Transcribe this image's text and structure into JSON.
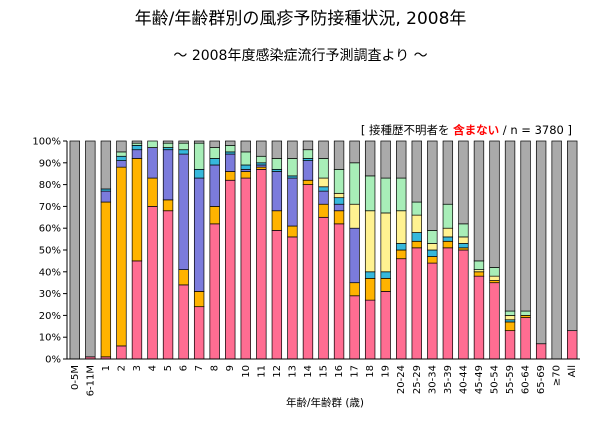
{
  "chart_data": {
    "type": "bar",
    "stacked": true,
    "title": "年齢/年齢群別の風疹予防接種状況, 2008年",
    "subtitle": "～ 2008年度感染症流行予測調査より ～",
    "annotation": {
      "prefix": "[ 接種歴不明者を ",
      "emphasis": "含まない",
      "suffix": " / n = 3780 ]",
      "emphasis_color": "#ff0000"
    },
    "xlabel": "年齢/年齢群 (歳)",
    "ylabel": "",
    "ylim": [
      0,
      100
    ],
    "yticks": [
      "0%",
      "10%",
      "20%",
      "30%",
      "40%",
      "50%",
      "60%",
      "70%",
      "80%",
      "90%",
      "100%"
    ],
    "grid": false,
    "legend": "none",
    "categories": [
      "0-5M",
      "6-11M",
      "1",
      "2",
      "3",
      "4",
      "5",
      "6",
      "7",
      "8",
      "9",
      "10",
      "11",
      "12",
      "13",
      "14",
      "15",
      "16",
      "17",
      "18",
      "19",
      "20-24",
      "25-29",
      "30-34",
      "35-39",
      "40-44",
      "45-49",
      "50-54",
      "55-59",
      "60-64",
      "65-69",
      "≥70",
      "All"
    ],
    "series_colors": [
      "#ff6d92",
      "#ffb300",
      "#7b7bdc",
      "#36b8dc",
      "#fff291",
      "#a8eeb8",
      "#aaaaaa"
    ],
    "series": [
      {
        "values": [
          0,
          1,
          1,
          6,
          45,
          70,
          68,
          34,
          24,
          62,
          82,
          83,
          87,
          59,
          56,
          80,
          65,
          62,
          29,
          27,
          31,
          46,
          51,
          44,
          51,
          50,
          38,
          35,
          13,
          19,
          7,
          0,
          13
        ]
      },
      {
        "values": [
          0,
          0,
          71,
          82,
          47,
          13,
          5,
          7,
          7,
          8,
          4,
          3,
          1,
          9,
          5,
          2,
          6,
          6,
          6,
          10,
          6,
          4,
          3,
          3,
          3,
          1,
          2,
          1,
          4,
          1,
          0,
          0,
          0
        ]
      },
      {
        "values": [
          0,
          0,
          5,
          3,
          4,
          14,
          23,
          53,
          52,
          19,
          8,
          1,
          1,
          18,
          22,
          9,
          6,
          3,
          25,
          0,
          0,
          0,
          0,
          0,
          0,
          0,
          0,
          0,
          0,
          0,
          0,
          0,
          0
        ]
      },
      {
        "values": [
          0,
          0,
          1,
          2,
          2,
          0,
          1,
          2,
          4,
          3,
          1,
          2,
          1,
          1,
          1,
          1,
          2,
          3,
          0,
          3,
          3,
          3,
          4,
          3,
          2,
          2,
          0,
          0,
          1,
          0,
          0,
          0,
          0
        ]
      },
      {
        "values": [
          0,
          0,
          0,
          0,
          0,
          0,
          0,
          0,
          0,
          0,
          0,
          0,
          0,
          0,
          0,
          0,
          4,
          2,
          11,
          28,
          27,
          15,
          8,
          3,
          4,
          3,
          1,
          2,
          2,
          0,
          0,
          0,
          0
        ]
      },
      {
        "values": [
          0,
          0,
          0,
          2,
          1,
          3,
          2,
          3,
          12,
          5,
          3,
          6,
          3,
          5,
          8,
          4,
          9,
          11,
          19,
          16,
          16,
          15,
          6,
          6,
          11,
          6,
          4,
          4,
          2,
          2,
          0,
          0,
          0
        ]
      },
      {
        "values": [
          100,
          99,
          22,
          5,
          1,
          0,
          1,
          1,
          1,
          3,
          2,
          5,
          7,
          8,
          8,
          4,
          8,
          13,
          10,
          16,
          17,
          17,
          28,
          41,
          29,
          38,
          55,
          58,
          78,
          78,
          93,
          100,
          87
        ]
      }
    ]
  }
}
